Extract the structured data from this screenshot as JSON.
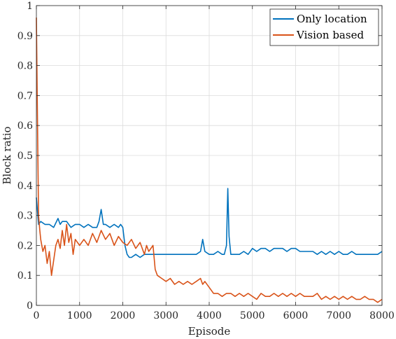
{
  "chart_data": {
    "type": "line",
    "title": "",
    "xlabel": "Episode",
    "ylabel": "Block ratio",
    "xlim": [
      0,
      8000
    ],
    "ylim": [
      0,
      1
    ],
    "xticks": [
      0,
      1000,
      2000,
      3000,
      4000,
      5000,
      6000,
      7000,
      8000
    ],
    "yticks": [
      0,
      0.1,
      0.2,
      0.3,
      0.4,
      0.5,
      0.6,
      0.7,
      0.8,
      0.9,
      1
    ],
    "xtick_labels": [
      "0",
      "1000",
      "2000",
      "3000",
      "4000",
      "5000",
      "6000",
      "7000",
      "8000"
    ],
    "ytick_labels": [
      "0",
      "0.1",
      "0.2",
      "0.3",
      "0.4",
      "0.5",
      "0.6",
      "0.7",
      "0.8",
      "0.9",
      "1"
    ],
    "grid": true,
    "legend_position": "top-right",
    "series": [
      {
        "name": "Only location",
        "color": "#0072BD",
        "points": [
          [
            0,
            0.36
          ],
          [
            50,
            0.27
          ],
          [
            100,
            0.28
          ],
          [
            200,
            0.27
          ],
          [
            300,
            0.27
          ],
          [
            400,
            0.26
          ],
          [
            500,
            0.29
          ],
          [
            550,
            0.27
          ],
          [
            600,
            0.28
          ],
          [
            700,
            0.28
          ],
          [
            800,
            0.26
          ],
          [
            900,
            0.27
          ],
          [
            1000,
            0.27
          ],
          [
            1100,
            0.26
          ],
          [
            1200,
            0.27
          ],
          [
            1300,
            0.26
          ],
          [
            1400,
            0.26
          ],
          [
            1450,
            0.28
          ],
          [
            1500,
            0.32
          ],
          [
            1550,
            0.27
          ],
          [
            1600,
            0.27
          ],
          [
            1700,
            0.26
          ],
          [
            1800,
            0.27
          ],
          [
            1900,
            0.26
          ],
          [
            1950,
            0.27
          ],
          [
            2000,
            0.26
          ],
          [
            2050,
            0.2
          ],
          [
            2100,
            0.17
          ],
          [
            2150,
            0.16
          ],
          [
            2200,
            0.16
          ],
          [
            2300,
            0.17
          ],
          [
            2400,
            0.16
          ],
          [
            2500,
            0.17
          ],
          [
            2600,
            0.17
          ],
          [
            2700,
            0.17
          ],
          [
            2800,
            0.17
          ],
          [
            2900,
            0.17
          ],
          [
            3000,
            0.17
          ],
          [
            3100,
            0.17
          ],
          [
            3200,
            0.17
          ],
          [
            3300,
            0.17
          ],
          [
            3400,
            0.17
          ],
          [
            3500,
            0.17
          ],
          [
            3600,
            0.17
          ],
          [
            3700,
            0.17
          ],
          [
            3800,
            0.18
          ],
          [
            3850,
            0.22
          ],
          [
            3900,
            0.18
          ],
          [
            4000,
            0.17
          ],
          [
            4100,
            0.17
          ],
          [
            4200,
            0.18
          ],
          [
            4300,
            0.17
          ],
          [
            4350,
            0.17
          ],
          [
            4400,
            0.2
          ],
          [
            4430,
            0.39
          ],
          [
            4460,
            0.23
          ],
          [
            4500,
            0.17
          ],
          [
            4600,
            0.17
          ],
          [
            4700,
            0.17
          ],
          [
            4800,
            0.18
          ],
          [
            4900,
            0.17
          ],
          [
            5000,
            0.19
          ],
          [
            5100,
            0.18
          ],
          [
            5200,
            0.19
          ],
          [
            5300,
            0.19
          ],
          [
            5400,
            0.18
          ],
          [
            5500,
            0.19
          ],
          [
            5600,
            0.19
          ],
          [
            5700,
            0.19
          ],
          [
            5800,
            0.18
          ],
          [
            5900,
            0.19
          ],
          [
            6000,
            0.19
          ],
          [
            6100,
            0.18
          ],
          [
            6200,
            0.18
          ],
          [
            6300,
            0.18
          ],
          [
            6400,
            0.18
          ],
          [
            6500,
            0.17
          ],
          [
            6600,
            0.18
          ],
          [
            6700,
            0.17
          ],
          [
            6800,
            0.18
          ],
          [
            6900,
            0.17
          ],
          [
            7000,
            0.18
          ],
          [
            7100,
            0.17
          ],
          [
            7200,
            0.17
          ],
          [
            7300,
            0.18
          ],
          [
            7400,
            0.17
          ],
          [
            7500,
            0.17
          ],
          [
            7600,
            0.17
          ],
          [
            7700,
            0.17
          ],
          [
            7800,
            0.17
          ],
          [
            7900,
            0.17
          ],
          [
            8000,
            0.18
          ]
        ]
      },
      {
        "name": "Vision based",
        "color": "#D95319",
        "points": [
          [
            0,
            0.96
          ],
          [
            20,
            0.7
          ],
          [
            50,
            0.3
          ],
          [
            80,
            0.25
          ],
          [
            100,
            0.22
          ],
          [
            150,
            0.18
          ],
          [
            200,
            0.2
          ],
          [
            250,
            0.14
          ],
          [
            300,
            0.18
          ],
          [
            350,
            0.1
          ],
          [
            400,
            0.15
          ],
          [
            450,
            0.2
          ],
          [
            500,
            0.22
          ],
          [
            550,
            0.19
          ],
          [
            600,
            0.25
          ],
          [
            650,
            0.2
          ],
          [
            700,
            0.27
          ],
          [
            750,
            0.21
          ],
          [
            800,
            0.24
          ],
          [
            850,
            0.17
          ],
          [
            900,
            0.22
          ],
          [
            1000,
            0.2
          ],
          [
            1100,
            0.22
          ],
          [
            1200,
            0.2
          ],
          [
            1300,
            0.24
          ],
          [
            1400,
            0.21
          ],
          [
            1500,
            0.25
          ],
          [
            1600,
            0.22
          ],
          [
            1700,
            0.24
          ],
          [
            1800,
            0.2
          ],
          [
            1900,
            0.23
          ],
          [
            2000,
            0.21
          ],
          [
            2100,
            0.2
          ],
          [
            2200,
            0.22
          ],
          [
            2300,
            0.19
          ],
          [
            2400,
            0.21
          ],
          [
            2500,
            0.17
          ],
          [
            2550,
            0.2
          ],
          [
            2600,
            0.18
          ],
          [
            2700,
            0.2
          ],
          [
            2750,
            0.12
          ],
          [
            2800,
            0.1
          ],
          [
            2900,
            0.09
          ],
          [
            3000,
            0.08
          ],
          [
            3100,
            0.09
          ],
          [
            3200,
            0.07
          ],
          [
            3300,
            0.08
          ],
          [
            3400,
            0.07
          ],
          [
            3500,
            0.08
          ],
          [
            3600,
            0.07
          ],
          [
            3700,
            0.08
          ],
          [
            3800,
            0.09
          ],
          [
            3850,
            0.07
          ],
          [
            3900,
            0.08
          ],
          [
            4000,
            0.06
          ],
          [
            4100,
            0.04
          ],
          [
            4200,
            0.04
          ],
          [
            4300,
            0.03
          ],
          [
            4400,
            0.04
          ],
          [
            4500,
            0.04
          ],
          [
            4600,
            0.03
          ],
          [
            4700,
            0.04
          ],
          [
            4800,
            0.03
          ],
          [
            4900,
            0.04
          ],
          [
            5000,
            0.03
          ],
          [
            5100,
            0.02
          ],
          [
            5200,
            0.04
          ],
          [
            5300,
            0.03
          ],
          [
            5400,
            0.03
          ],
          [
            5500,
            0.04
          ],
          [
            5600,
            0.03
          ],
          [
            5700,
            0.04
          ],
          [
            5800,
            0.03
          ],
          [
            5900,
            0.04
          ],
          [
            6000,
            0.03
          ],
          [
            6100,
            0.04
          ],
          [
            6200,
            0.03
          ],
          [
            6300,
            0.03
          ],
          [
            6400,
            0.03
          ],
          [
            6500,
            0.04
          ],
          [
            6600,
            0.02
          ],
          [
            6700,
            0.03
          ],
          [
            6800,
            0.02
          ],
          [
            6900,
            0.03
          ],
          [
            7000,
            0.02
          ],
          [
            7100,
            0.03
          ],
          [
            7200,
            0.02
          ],
          [
            7300,
            0.03
          ],
          [
            7400,
            0.02
          ],
          [
            7500,
            0.02
          ],
          [
            7600,
            0.03
          ],
          [
            7700,
            0.02
          ],
          [
            7800,
            0.02
          ],
          [
            7900,
            0.01
          ],
          [
            8000,
            0.02
          ]
        ]
      }
    ]
  }
}
